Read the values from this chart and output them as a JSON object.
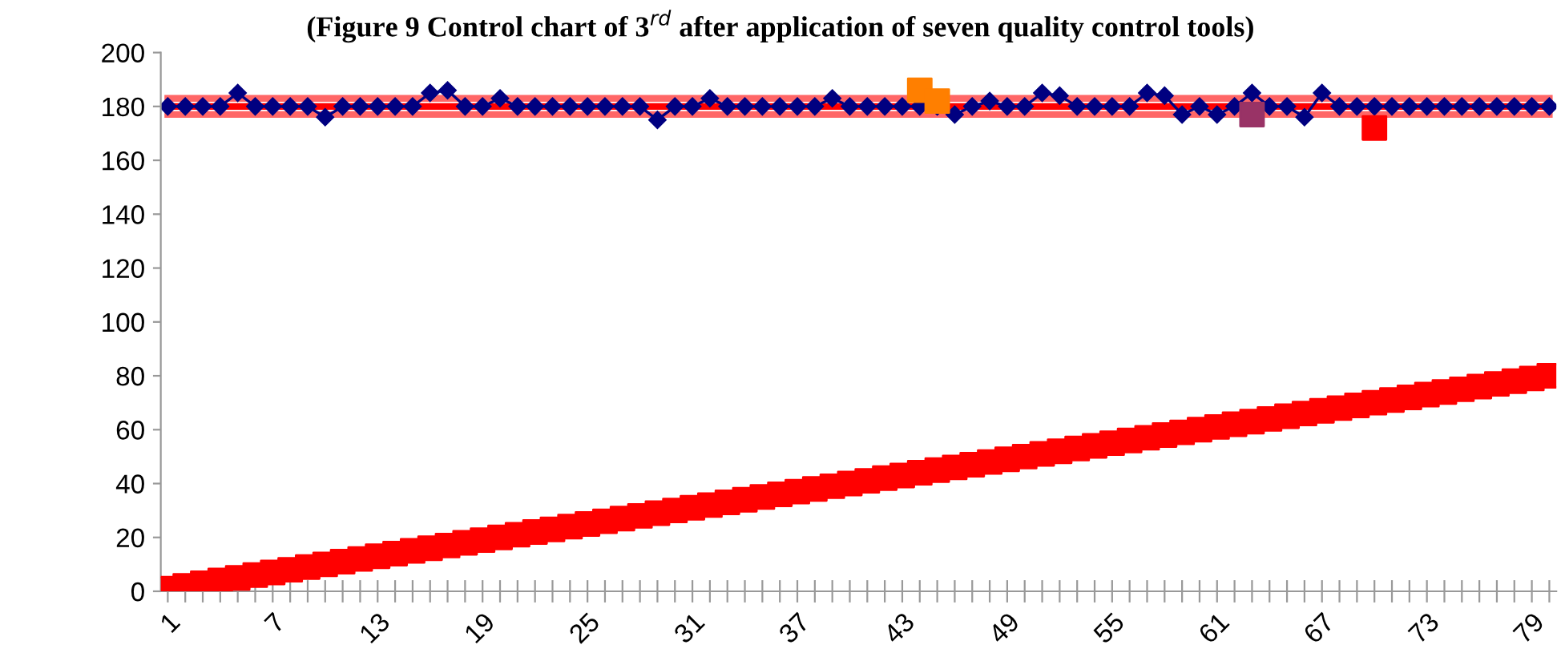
{
  "chart_data": {
    "type": "line",
    "title": "(Figure 9 Control chart of 3$^{rd}$ after application of seven quality control tools)",
    "categories": [
      "1",
      null,
      null,
      null,
      null,
      null,
      "7",
      null,
      null,
      null,
      null,
      null,
      "13",
      null,
      null,
      null,
      null,
      null,
      "19",
      null,
      null,
      null,
      null,
      null,
      "25",
      null,
      null,
      null,
      null,
      null,
      "31",
      null,
      null,
      null,
      null,
      null,
      "37",
      null,
      null,
      null,
      null,
      null,
      "43",
      null,
      null,
      null,
      null,
      null,
      "49",
      null,
      null,
      null,
      null,
      null,
      "55",
      null,
      null,
      null,
      null,
      null,
      "61",
      null,
      null,
      null,
      null,
      null,
      "67",
      null,
      null,
      null,
      null,
      null,
      "73",
      null,
      null,
      null,
      null,
      null,
      "79",
      null
    ],
    "ylim": [
      0,
      200
    ],
    "yticks": [
      0,
      20,
      40,
      60,
      80,
      100,
      120,
      140,
      160,
      180,
      200
    ],
    "grid": false,
    "legend": false,
    "series": [
      {
        "color": "#ff6666",
        "line_style": "solid",
        "marker": "none",
        "values": [
          183,
          183,
          183,
          183,
          183,
          183,
          183,
          183,
          183,
          183,
          183,
          183,
          183,
          183,
          183,
          183,
          183,
          183,
          183,
          183,
          183,
          183,
          183,
          183,
          183,
          183,
          183,
          183,
          183,
          183,
          183,
          183,
          183,
          183,
          183,
          183,
          183,
          183,
          183,
          183,
          183,
          183,
          183,
          183,
          183,
          183,
          183,
          183,
          183,
          183,
          183,
          183,
          183,
          183,
          183,
          183,
          183,
          183,
          183,
          183,
          183,
          183,
          183,
          183,
          183,
          183,
          183,
          183,
          183,
          183,
          183,
          183,
          183,
          183,
          183,
          183,
          183,
          183,
          183,
          183
        ]
      },
      {
        "color": "#ff6666",
        "line_style": "solid",
        "marker": "none",
        "values": [
          177,
          177,
          177,
          177,
          177,
          177,
          177,
          177,
          177,
          177,
          177,
          177,
          177,
          177,
          177,
          177,
          177,
          177,
          177,
          177,
          177,
          177,
          177,
          177,
          177,
          177,
          177,
          177,
          177,
          177,
          177,
          177,
          177,
          177,
          177,
          177,
          177,
          177,
          177,
          177,
          177,
          177,
          177,
          177,
          177,
          177,
          177,
          177,
          177,
          177,
          177,
          177,
          177,
          177,
          177,
          177,
          177,
          177,
          177,
          177,
          177,
          177,
          177,
          177,
          177,
          177,
          177,
          177,
          177,
          177,
          177,
          177,
          177,
          177,
          177,
          177,
          177,
          177,
          177,
          177
        ]
      },
      {
        "color": "#ff0000",
        "line_style": "solid",
        "marker": "none",
        "values": [
          180,
          180,
          180,
          180,
          180,
          180,
          180,
          180,
          180,
          180,
          180,
          180,
          180,
          180,
          180,
          180,
          180,
          180,
          180,
          180,
          180,
          180,
          180,
          180,
          180,
          180,
          180,
          180,
          180,
          180,
          180,
          180,
          180,
          180,
          180,
          180,
          180,
          180,
          180,
          180,
          180,
          180,
          180,
          180,
          180,
          180,
          180,
          180,
          180,
          180,
          180,
          180,
          180,
          180,
          180,
          180,
          180,
          180,
          180,
          180,
          180,
          180,
          180,
          180,
          180,
          180,
          180,
          180,
          180,
          180,
          180,
          180,
          180,
          180,
          180,
          180,
          180,
          180,
          180,
          180
        ]
      },
      {
        "color": "#000080",
        "line_style": "solid",
        "marker": "diamond",
        "values": [
          180,
          180,
          180,
          180,
          185,
          180,
          180,
          180,
          180,
          176,
          180,
          180,
          180,
          180,
          180,
          185,
          186,
          180,
          180,
          183,
          180,
          180,
          180,
          180,
          180,
          180,
          180,
          180,
          175,
          180,
          180,
          183,
          180,
          180,
          180,
          180,
          180,
          180,
          183,
          180,
          180,
          180,
          180,
          180,
          180,
          177,
          180,
          182,
          180,
          180,
          185,
          184,
          180,
          180,
          180,
          180,
          185,
          184,
          177,
          180,
          177,
          180,
          185,
          180,
          180,
          176,
          185,
          180,
          180,
          180,
          180,
          180,
          180,
          180,
          180,
          180,
          180,
          180,
          180,
          180
        ]
      },
      {
        "type": "scatter",
        "color": "#ff7f00",
        "marker": "square",
        "values": [
          null,
          null,
          null,
          null,
          null,
          null,
          null,
          null,
          null,
          null,
          null,
          null,
          null,
          null,
          null,
          null,
          null,
          null,
          null,
          null,
          null,
          null,
          null,
          null,
          null,
          null,
          null,
          null,
          null,
          null,
          null,
          null,
          null,
          null,
          null,
          null,
          null,
          null,
          null,
          null,
          null,
          null,
          null,
          186,
          182,
          null,
          null,
          null,
          null,
          null,
          null,
          null,
          null,
          null,
          null,
          null,
          null,
          null,
          null,
          null,
          null,
          null,
          null,
          null,
          null,
          null,
          null,
          null,
          null,
          null,
          null,
          null,
          null,
          null,
          null,
          null,
          null,
          null,
          null,
          null
        ]
      },
      {
        "type": "scatter",
        "color": "#993366",
        "marker": "square",
        "values": [
          null,
          null,
          null,
          null,
          null,
          null,
          null,
          null,
          null,
          null,
          null,
          null,
          null,
          null,
          null,
          null,
          null,
          null,
          null,
          null,
          null,
          null,
          null,
          null,
          null,
          null,
          null,
          null,
          null,
          null,
          null,
          null,
          null,
          null,
          null,
          null,
          null,
          null,
          null,
          null,
          null,
          null,
          null,
          null,
          null,
          null,
          null,
          null,
          null,
          null,
          null,
          null,
          null,
          null,
          null,
          null,
          null,
          null,
          null,
          null,
          null,
          null,
          177,
          null,
          null,
          null,
          null,
          null,
          null,
          null,
          null,
          null,
          null,
          null,
          null,
          null,
          null,
          null,
          null,
          null
        ]
      },
      {
        "type": "scatter",
        "color": "#ff0000",
        "marker": "square",
        "values": [
          null,
          null,
          null,
          null,
          null,
          null,
          null,
          null,
          null,
          null,
          null,
          null,
          null,
          null,
          null,
          null,
          null,
          null,
          null,
          null,
          null,
          null,
          null,
          null,
          null,
          null,
          null,
          null,
          null,
          null,
          null,
          null,
          null,
          null,
          null,
          null,
          null,
          null,
          null,
          null,
          null,
          null,
          null,
          null,
          null,
          null,
          null,
          null,
          null,
          null,
          null,
          null,
          null,
          null,
          null,
          null,
          null,
          null,
          null,
          null,
          null,
          null,
          null,
          null,
          null,
          null,
          null,
          null,
          null,
          172,
          null,
          null,
          null,
          null,
          null,
          null,
          null,
          null,
          null,
          null
        ]
      },
      {
        "type": "scatter",
        "color": "#ff0000",
        "marker": "square",
        "values": [
          1,
          2,
          3,
          4,
          5,
          6,
          7,
          8,
          9,
          10,
          11,
          12,
          13,
          14,
          15,
          16,
          17,
          18,
          19,
          20,
          21,
          22,
          23,
          24,
          25,
          26,
          27,
          28,
          29,
          30,
          31,
          32,
          33,
          34,
          35,
          36,
          37,
          38,
          39,
          40,
          41,
          42,
          43,
          44,
          45,
          46,
          47,
          48,
          49,
          50,
          51,
          52,
          53,
          54,
          55,
          56,
          57,
          58,
          59,
          60,
          61,
          62,
          63,
          64,
          65,
          66,
          67,
          68,
          69,
          70,
          71,
          72,
          73,
          74,
          75,
          76,
          77,
          78,
          79,
          80
        ]
      }
    ]
  }
}
